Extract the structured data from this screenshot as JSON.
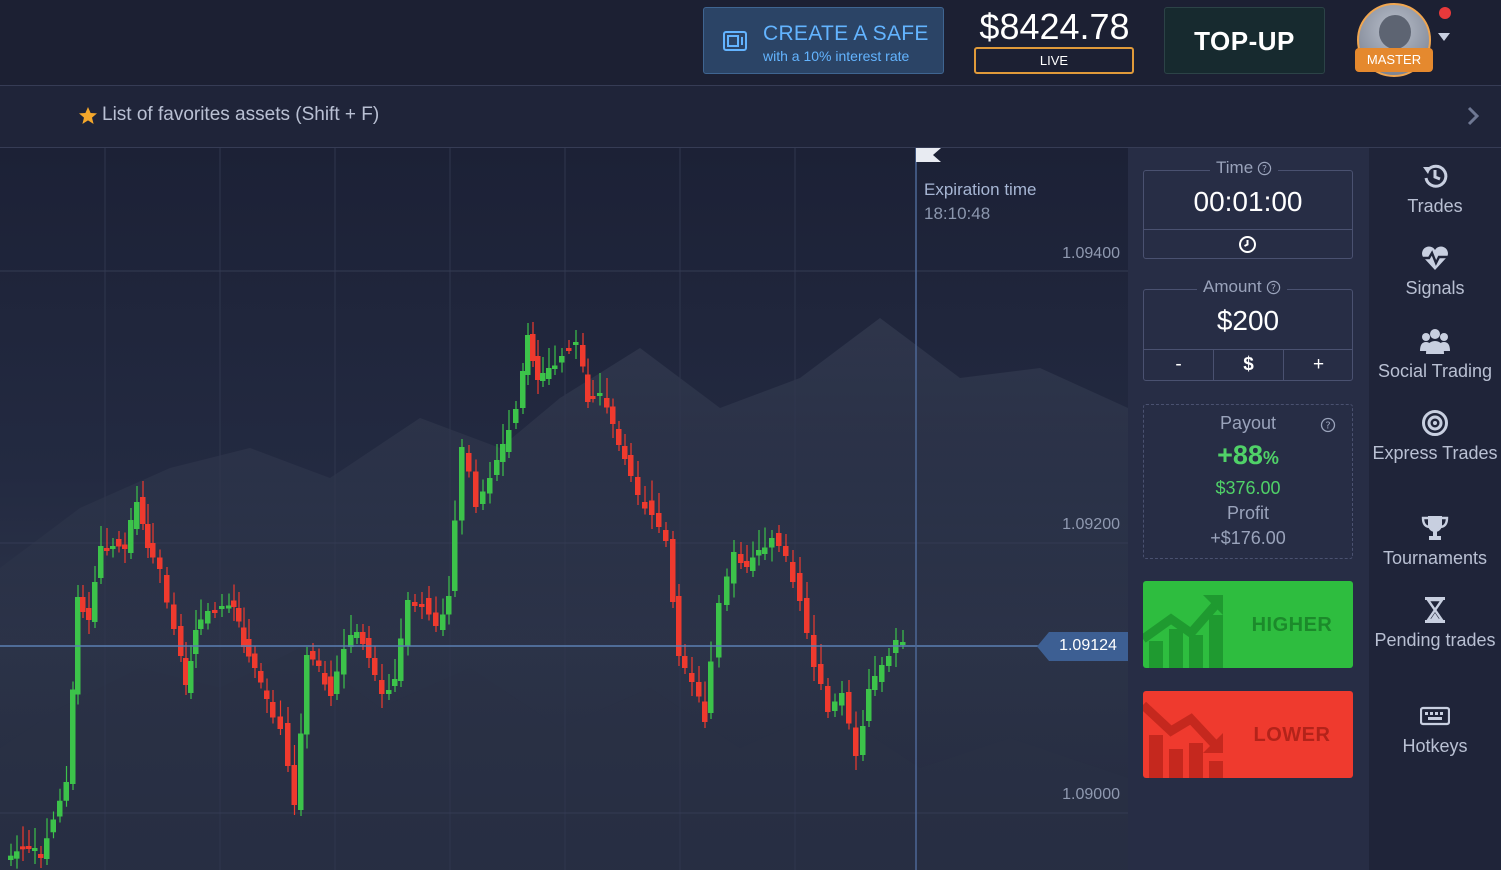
{
  "header": {
    "safe_title": "CREATE A SAFE",
    "safe_subtitle": "with a 10% interest rate",
    "balance": "$8424.78",
    "account_mode": "LIVE",
    "topup_label": "TOP-UP",
    "user_status": "MASTER"
  },
  "favorites": {
    "label": "List of favorites assets (Shift + F)"
  },
  "chart": {
    "expiration_label": "Expiration time",
    "expiration_time": "18:10:48",
    "current_price": "1.09124",
    "price_levels": [
      "1.09400",
      "1.09200",
      "1.09000"
    ]
  },
  "trade": {
    "time_label": "Time",
    "time_value": "00:01:00",
    "amount_label": "Amount",
    "amount_value": "$200",
    "amount_minus": "-",
    "amount_currency": "$",
    "amount_plus": "+",
    "payout_label": "Payout",
    "payout_percent": "+88",
    "payout_percent_sign": "%",
    "payout_amount": "$376.00",
    "profit_label": "Profit",
    "profit_value": "+$176.00",
    "higher_label": "HIGHER",
    "lower_label": "LOWER"
  },
  "sidebar": {
    "items": [
      {
        "label": "Trades",
        "icon": "trades-history-icon"
      },
      {
        "label": "Signals",
        "icon": "signals-heartbeat-icon"
      },
      {
        "label": "Social Trading",
        "icon": "social-trading-icon"
      },
      {
        "label": "Express Trades",
        "icon": "express-target-icon"
      },
      {
        "label": "Tournaments",
        "icon": "trophy-icon"
      },
      {
        "label": "Pending trades",
        "icon": "hourglass-icon"
      },
      {
        "label": "Hotkeys",
        "icon": "keyboard-icon"
      }
    ]
  },
  "colors": {
    "background": "#1f2439",
    "panel": "#272d45",
    "bull": "#3cc34a",
    "bear": "#ef3a2e",
    "accent_blue": "#63b4ff",
    "accent_orange": "#e5892e"
  }
}
